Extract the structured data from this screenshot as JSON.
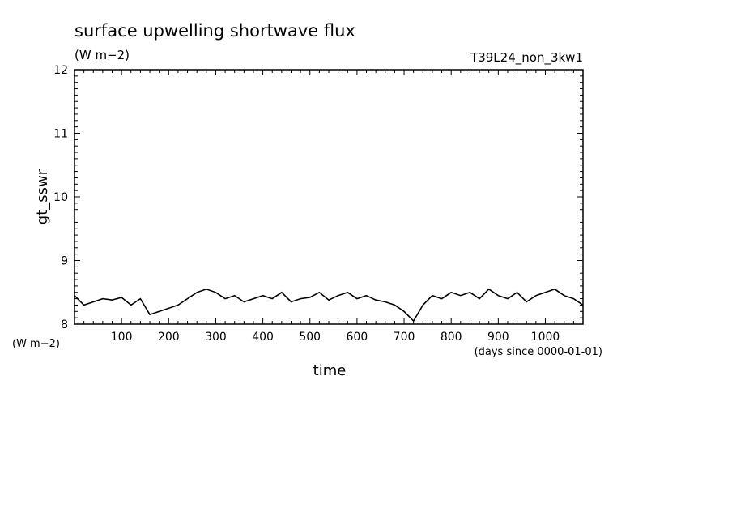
{
  "chart_data": {
    "type": "line",
    "title": "surface upwelling shortwave flux",
    "title_units": "(W m−2)",
    "run_label": "T39L24_non_3kw1",
    "ylabel": "gt_sswr",
    "y_units": "(W m−2)",
    "xlabel": "time",
    "x_units": "(days since 0000-01-01)",
    "xlim": [
      0,
      1080
    ],
    "ylim": [
      8,
      12
    ],
    "x_ticks": [
      100,
      200,
      300,
      400,
      500,
      600,
      700,
      800,
      900,
      1000
    ],
    "y_ticks": [
      8,
      9,
      10,
      11,
      12
    ],
    "grid": false,
    "series": [
      {
        "color": "#000000",
        "x": [
          0,
          20,
          40,
          60,
          80,
          100,
          120,
          140,
          160,
          180,
          200,
          220,
          240,
          260,
          280,
          300,
          320,
          340,
          360,
          380,
          400,
          420,
          440,
          460,
          480,
          500,
          520,
          540,
          560,
          580,
          600,
          620,
          640,
          660,
          680,
          700,
          720,
          740,
          760,
          780,
          800,
          820,
          840,
          860,
          880,
          900,
          920,
          940,
          960,
          980,
          1000,
          1020,
          1040,
          1060,
          1080
        ],
        "values": [
          8.45,
          8.3,
          8.35,
          8.4,
          8.38,
          8.42,
          8.3,
          8.4,
          8.15,
          8.2,
          8.25,
          8.3,
          8.4,
          8.5,
          8.55,
          8.5,
          8.4,
          8.45,
          8.35,
          8.4,
          8.45,
          8.4,
          8.5,
          8.35,
          8.4,
          8.42,
          8.5,
          8.38,
          8.45,
          8.5,
          8.4,
          8.45,
          8.38,
          8.35,
          8.3,
          8.2,
          8.05,
          8.3,
          8.45,
          8.4,
          8.5,
          8.45,
          8.5,
          8.4,
          8.55,
          8.45,
          8.4,
          8.5,
          8.35,
          8.45,
          8.5,
          8.55,
          8.45,
          8.4,
          8.3
        ]
      }
    ]
  }
}
